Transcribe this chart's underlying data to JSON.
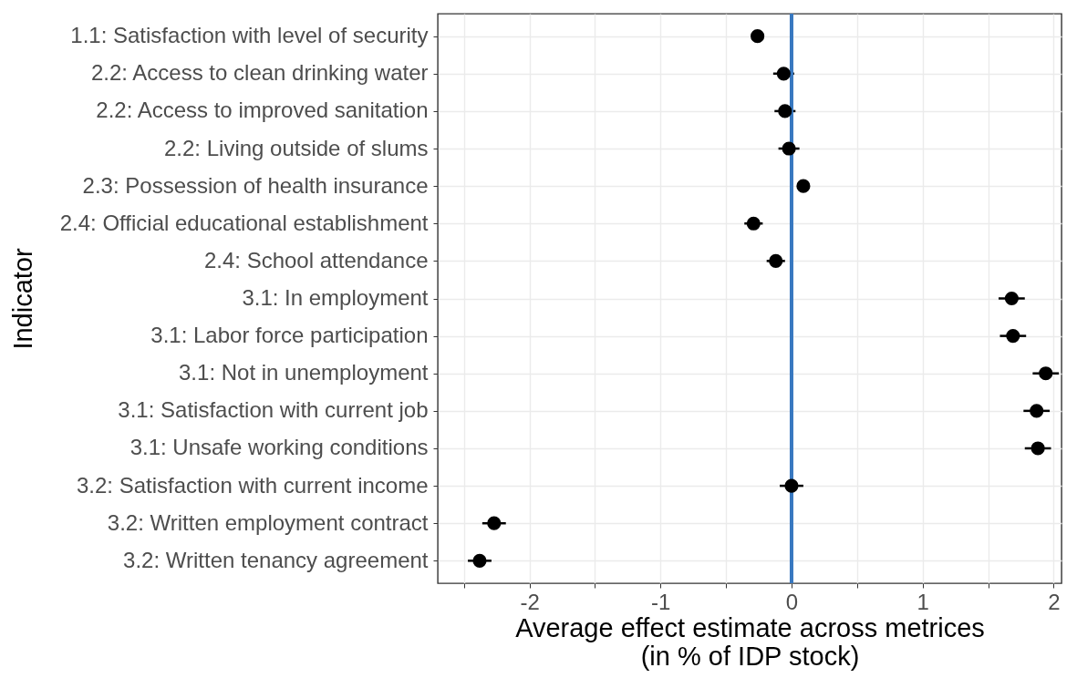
{
  "chart_data": {
    "type": "scatter",
    "xlabel": "Average effect estimate across metrices\n(in % of IDP stock)",
    "ylabel": "Indicator",
    "orientation": "horizontal",
    "categories": [
      "1.1: Satisfaction with level of security",
      "2.2: Access to clean drinking water",
      "2.2: Access to improved sanitation",
      "2.2: Living outside of slums",
      "2.3: Possession of health insurance",
      "2.4: Official educational establishment",
      "2.4: School attendance",
      "3.1: In employment",
      "3.1: Labor force participation",
      "3.1: Not in unemployment",
      "3.1: Satisfaction with current job",
      "3.1: Unsafe working conditions",
      "3.2: Satisfaction with current income",
      "3.2: Written employment contract",
      "3.2: Written tenancy agreement"
    ],
    "series": [
      {
        "color": "#000000",
        "values": [
          -0.26,
          -0.06,
          -0.05,
          -0.02,
          0.09,
          -0.29,
          -0.12,
          1.68,
          1.69,
          1.94,
          1.87,
          1.88,
          0.0,
          -2.27,
          -2.38
        ],
        "errors": [
          0.04,
          0.08,
          0.08,
          0.08,
          0.04,
          0.07,
          0.07,
          0.1,
          0.1,
          0.1,
          0.1,
          0.1,
          0.09,
          0.09,
          0.09
        ]
      }
    ],
    "xlim": [
      -2.7,
      2.06
    ],
    "xticks": [
      {
        "value": -2.5,
        "label": null
      },
      -2,
      {
        "value": -1.5,
        "label": null
      },
      -1,
      {
        "value": -0.5,
        "label": null
      },
      0,
      {
        "value": 0.5,
        "label": null
      },
      1,
      {
        "value": 1.5,
        "label": null
      },
      2
    ],
    "ref_lines": [
      {
        "axis": "x",
        "value": 0,
        "color": "#3878c0"
      }
    ],
    "grid": true,
    "marker": "circle"
  }
}
